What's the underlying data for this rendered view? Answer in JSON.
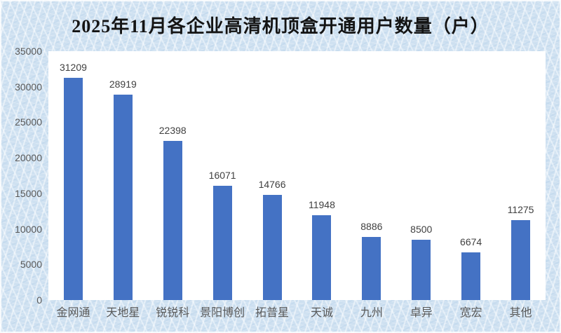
{
  "chart_data": {
    "type": "bar",
    "title": "2025年11月各企业高清机顶盒开通用户数量（户）",
    "categories": [
      "金网通",
      "天地星",
      "锐锐科",
      "景阳博创",
      "拓普星",
      "天诚",
      "九州",
      "卓异",
      "宽宏",
      "其他"
    ],
    "values": [
      31209,
      28919,
      22398,
      16071,
      14766,
      11948,
      8886,
      8500,
      6674,
      11275
    ],
    "data_labels_shown": true,
    "xlabel": "",
    "ylabel": "",
    "ylim": [
      0,
      35000
    ],
    "yticks": [
      0,
      5000,
      10000,
      15000,
      20000,
      25000,
      30000,
      35000
    ],
    "grid": false,
    "legend": "none",
    "colors": {
      "bar": "#4472C4",
      "axis_labels": "#595959",
      "data_labels": "#404040",
      "title": "#141414",
      "plot_background": "#FFFFFF",
      "page_background": "#CFE1F1"
    }
  }
}
